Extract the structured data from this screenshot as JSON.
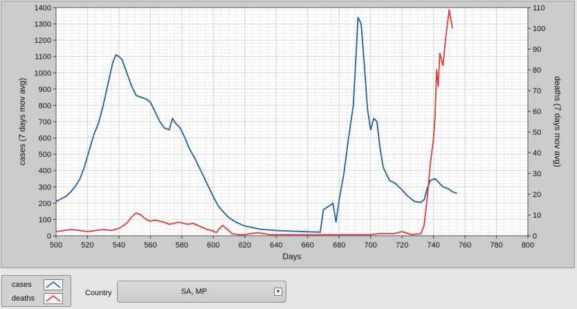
{
  "chart_data": {
    "type": "line",
    "xlabel": "Days",
    "ylabel_left": "cases  (7 days mov avg)",
    "ylabel_right": "deaths  (7 days mov avg)",
    "xlim": [
      500,
      800
    ],
    "ylim_left": [
      0,
      1400
    ],
    "ylim_right": [
      0,
      110
    ],
    "xticks": [
      500,
      520,
      540,
      560,
      580,
      600,
      620,
      640,
      660,
      680,
      700,
      720,
      740,
      760,
      780,
      800
    ],
    "yticks_left": [
      0,
      100,
      200,
      300,
      400,
      500,
      600,
      700,
      800,
      900,
      1000,
      1100,
      1200,
      1300,
      1400
    ],
    "yticks_right": [
      0,
      10,
      20,
      30,
      40,
      50,
      60,
      70,
      80,
      90,
      100,
      110
    ],
    "grid": true,
    "series": [
      {
        "name": "cases",
        "axis": "left",
        "color": "#1f5f9f",
        "points": [
          [
            500,
            210
          ],
          [
            503,
            225
          ],
          [
            506,
            240
          ],
          [
            509,
            265
          ],
          [
            512,
            300
          ],
          [
            515,
            345
          ],
          [
            518,
            420
          ],
          [
            521,
            520
          ],
          [
            524,
            620
          ],
          [
            527,
            690
          ],
          [
            530,
            800
          ],
          [
            533,
            930
          ],
          [
            536,
            1060
          ],
          [
            538,
            1110
          ],
          [
            540,
            1100
          ],
          [
            542,
            1080
          ],
          [
            545,
            1000
          ],
          [
            548,
            920
          ],
          [
            551,
            860
          ],
          [
            554,
            850
          ],
          [
            557,
            840
          ],
          [
            560,
            820
          ],
          [
            563,
            760
          ],
          [
            566,
            700
          ],
          [
            569,
            660
          ],
          [
            572,
            650
          ],
          [
            574,
            720
          ],
          [
            576,
            690
          ],
          [
            579,
            660
          ],
          [
            582,
            600
          ],
          [
            585,
            530
          ],
          [
            588,
            480
          ],
          [
            591,
            420
          ],
          [
            594,
            360
          ],
          [
            597,
            300
          ],
          [
            600,
            240
          ],
          [
            603,
            185
          ],
          [
            606,
            150
          ],
          [
            610,
            110
          ],
          [
            615,
            80
          ],
          [
            620,
            60
          ],
          [
            630,
            40
          ],
          [
            640,
            32
          ],
          [
            650,
            28
          ],
          [
            660,
            24
          ],
          [
            668,
            22
          ],
          [
            670,
            160
          ],
          [
            674,
            185
          ],
          [
            676,
            200
          ],
          [
            678,
            85
          ],
          [
            680,
            220
          ],
          [
            683,
            380
          ],
          [
            686,
            600
          ],
          [
            689,
            800
          ],
          [
            691,
            1150
          ],
          [
            692,
            1340
          ],
          [
            694,
            1300
          ],
          [
            696,
            1050
          ],
          [
            698,
            780
          ],
          [
            700,
            650
          ],
          [
            702,
            720
          ],
          [
            704,
            700
          ],
          [
            706,
            540
          ],
          [
            708,
            420
          ],
          [
            712,
            340
          ],
          [
            716,
            320
          ],
          [
            720,
            280
          ],
          [
            724,
            240
          ],
          [
            728,
            210
          ],
          [
            732,
            205
          ],
          [
            734,
            220
          ],
          [
            736,
            290
          ],
          [
            738,
            340
          ],
          [
            741,
            350
          ],
          [
            743,
            330
          ],
          [
            746,
            300
          ],
          [
            749,
            290
          ],
          [
            752,
            270
          ],
          [
            755,
            260
          ]
        ]
      },
      {
        "name": "deaths",
        "axis": "right",
        "color": "#e0393a",
        "points": [
          [
            500,
            2
          ],
          [
            505,
            2.5
          ],
          [
            510,
            3
          ],
          [
            515,
            2.5
          ],
          [
            520,
            2
          ],
          [
            525,
            2.5
          ],
          [
            530,
            3
          ],
          [
            535,
            2.5
          ],
          [
            540,
            3.5
          ],
          [
            545,
            6
          ],
          [
            548,
            9
          ],
          [
            551,
            11
          ],
          [
            554,
            10
          ],
          [
            557,
            8
          ],
          [
            560,
            7
          ],
          [
            563,
            7.5
          ],
          [
            566,
            7
          ],
          [
            569,
            6.5
          ],
          [
            572,
            5.5
          ],
          [
            575,
            6
          ],
          [
            578,
            6.5
          ],
          [
            581,
            6
          ],
          [
            584,
            5.5
          ],
          [
            587,
            6
          ],
          [
            590,
            5
          ],
          [
            593,
            4
          ],
          [
            596,
            3
          ],
          [
            599,
            2.5
          ],
          [
            602,
            1.5
          ],
          [
            604,
            3.5
          ],
          [
            606,
            5
          ],
          [
            609,
            3
          ],
          [
            612,
            1
          ],
          [
            616,
            0.5
          ],
          [
            620,
            0.5
          ],
          [
            624,
            1
          ],
          [
            628,
            1.5
          ],
          [
            632,
            1
          ],
          [
            636,
            0.5
          ],
          [
            640,
            0.5
          ],
          [
            650,
            0.5
          ],
          [
            660,
            0.5
          ],
          [
            670,
            0.5
          ],
          [
            680,
            0.5
          ],
          [
            690,
            0.5
          ],
          [
            700,
            0.5
          ],
          [
            705,
            1
          ],
          [
            710,
            1
          ],
          [
            715,
            1
          ],
          [
            720,
            2
          ],
          [
            726,
            0.5
          ],
          [
            732,
            1
          ],
          [
            734,
            5
          ],
          [
            736,
            18
          ],
          [
            738,
            35
          ],
          [
            740,
            47
          ],
          [
            741,
            58
          ],
          [
            742,
            80
          ],
          [
            743,
            72
          ],
          [
            744,
            88
          ],
          [
            746,
            82
          ],
          [
            748,
            97
          ],
          [
            750,
            109
          ],
          [
            752,
            100
          ]
        ]
      }
    ]
  },
  "legend": {
    "items": [
      {
        "label": "cases",
        "color": "#1f5f9f"
      },
      {
        "label": "deaths",
        "color": "#e0393a"
      }
    ]
  },
  "country": {
    "label": "Country",
    "value": "SA, MP"
  }
}
